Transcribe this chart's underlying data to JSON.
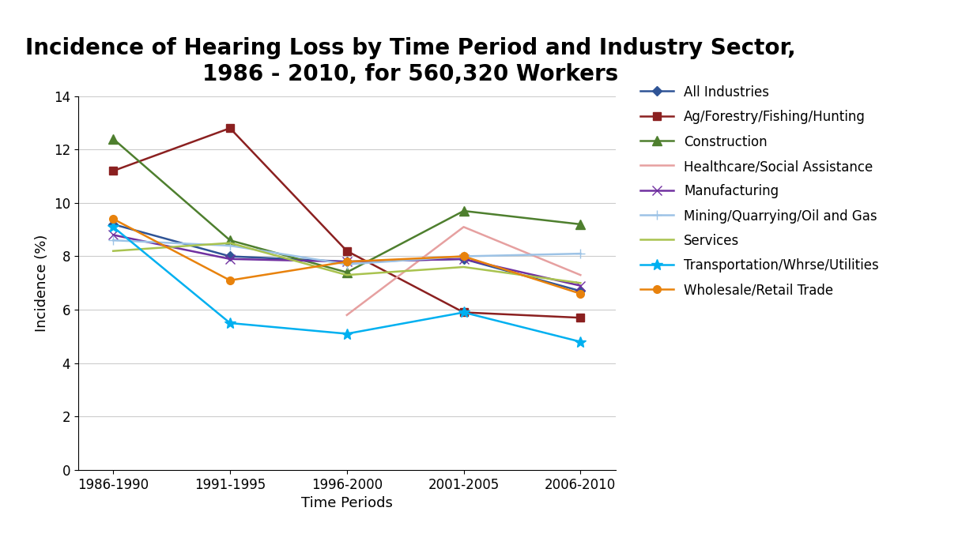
{
  "title": "Incidence of Hearing Loss by Time Period and Industry Sector,\n1986 - 2010, for 560,320 Workers",
  "xlabel": "Time Periods",
  "ylabel": "Incidence (%)",
  "time_periods": [
    "1986-1990",
    "1991-1995",
    "1996-2000",
    "2001-2005",
    "2006-2010"
  ],
  "series": [
    {
      "name": "All Industries",
      "color": "#2F5496",
      "marker": "D",
      "markersize": 6,
      "linewidth": 1.8,
      "values": [
        9.2,
        8.0,
        7.8,
        7.9,
        6.7
      ]
    },
    {
      "name": "Ag/Forestry/Fishing/Hunting",
      "color": "#8B2020",
      "marker": "s",
      "markersize": 7,
      "linewidth": 1.8,
      "values": [
        11.2,
        12.8,
        8.2,
        5.9,
        5.7
      ]
    },
    {
      "name": "Construction",
      "color": "#4E7F2E",
      "marker": "^",
      "markersize": 8,
      "linewidth": 1.8,
      "values": [
        12.4,
        8.6,
        7.4,
        9.7,
        9.2
      ]
    },
    {
      "name": "Healthcare/Social Assistance",
      "color": "#E6A0A0",
      "marker": "None",
      "markersize": 6,
      "linewidth": 1.8,
      "values": [
        null,
        null,
        5.8,
        9.1,
        7.3
      ]
    },
    {
      "name": "Manufacturing",
      "color": "#7030A0",
      "marker": "x",
      "markersize": 8,
      "linewidth": 1.8,
      "values": [
        8.8,
        7.9,
        7.8,
        7.9,
        6.9
      ]
    },
    {
      "name": "Mining/Quarrying/Oil and Gas",
      "color": "#9DC3E6",
      "marker": "+",
      "markersize": 9,
      "linewidth": 1.8,
      "values": [
        8.6,
        8.4,
        7.7,
        8.0,
        8.1
      ]
    },
    {
      "name": "Services",
      "color": "#A9C34F",
      "marker": "None",
      "markersize": 6,
      "linewidth": 1.8,
      "values": [
        8.2,
        8.5,
        7.3,
        7.6,
        7.0
      ]
    },
    {
      "name": "Transportation/Whrse/Utilities",
      "color": "#00B0F0",
      "marker": "*",
      "markersize": 10,
      "linewidth": 1.8,
      "values": [
        9.1,
        5.5,
        5.1,
        5.9,
        4.8
      ]
    },
    {
      "name": "Wholesale/Retail Trade",
      "color": "#E8820C",
      "marker": "o",
      "markersize": 7,
      "linewidth": 1.8,
      "values": [
        9.4,
        7.1,
        7.8,
        8.0,
        6.6
      ]
    }
  ],
  "ylim": [
    0,
    14
  ],
  "yticks": [
    0,
    2,
    4,
    6,
    8,
    10,
    12,
    14
  ],
  "background_color": "#FFFFFF",
  "title_fontsize": 20,
  "axis_label_fontsize": 13,
  "tick_fontsize": 12,
  "legend_fontsize": 12
}
